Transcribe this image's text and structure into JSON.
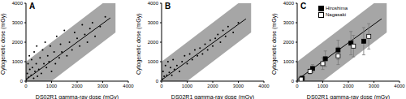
{
  "chart_data": [
    {
      "type": "scatter",
      "title": "A",
      "x_label": "DS02R1 gamma-ray dose (mGy)",
      "y_label": "Cytogenetic dose (mGy)",
      "xlim": [
        0,
        4000
      ],
      "xticks": [
        0,
        1000,
        2000,
        3000,
        4000
      ],
      "ylim": [
        0,
        4000
      ],
      "yticks": [
        0,
        1000,
        2000,
        3000,
        4000
      ],
      "band": {
        "x": [
          0,
          1000,
          3000,
          3500
        ],
        "lower": [
          0,
          0,
          2000,
          2500
        ],
        "upper": [
          1000,
          2000,
          4000,
          4000
        ],
        "color": "#a6a6a6"
      },
      "fit_line": {
        "x": [
          0,
          3300
        ],
        "y": [
          80,
          3250
        ],
        "color": "#000000"
      },
      "series": [
        {
          "color": "#000000",
          "marker": "circle",
          "x": [
            20,
            50,
            80,
            100,
            130,
            150,
            200,
            220,
            250,
            300,
            320,
            350,
            400,
            420,
            450,
            500,
            550,
            600,
            650,
            700,
            750,
            800,
            850,
            900,
            950,
            1000,
            1100,
            1150,
            1200,
            1300,
            1350,
            1400,
            1500,
            1600,
            1700,
            1800,
            1900,
            2000,
            2100,
            2200,
            2300,
            2400,
            2500,
            2600,
            2700,
            2900,
            3100
          ],
          "y": [
            100,
            400,
            900,
            200,
            1300,
            600,
            300,
            1100,
            700,
            150,
            1500,
            500,
            900,
            1800,
            250,
            600,
            1200,
            400,
            1600,
            900,
            2000,
            700,
            1300,
            1000,
            1800,
            500,
            1500,
            900,
            2300,
            1200,
            1900,
            1500,
            2600,
            1300,
            2000,
            1600,
            2500,
            2200,
            1800,
            2900,
            2400,
            2000,
            2700,
            3000,
            2300,
            2800,
            3300
          ]
        }
      ]
    },
    {
      "type": "scatter",
      "title": "B",
      "x_label": "DS02R1 gamma-ray dose (mGy)",
      "y_label": "Cytogenetic dose (mGy)",
      "xlim": [
        0,
        4000
      ],
      "xticks": [
        0,
        1000,
        2000,
        3000,
        4000
      ],
      "ylim": [
        0,
        4000
      ],
      "yticks": [
        0,
        1000,
        2000,
        3000,
        4000
      ],
      "band": {
        "x": [
          0,
          1000,
          3000,
          3500
        ],
        "lower": [
          0,
          0,
          2000,
          2500
        ],
        "upper": [
          1000,
          2000,
          4000,
          4000
        ],
        "color": "#a6a6a6"
      },
      "fit_line": {
        "x": [
          0,
          3300
        ],
        "y": [
          60,
          3200
        ],
        "color": "#000000"
      },
      "series": [
        {
          "color": "#000000",
          "marker": "circle",
          "x": [
            30,
            60,
            100,
            150,
            200,
            250,
            300,
            350,
            400,
            450,
            500,
            600,
            700,
            800,
            900,
            1000,
            1100,
            1200,
            1300,
            1400,
            1500,
            1600,
            1700,
            1800,
            1900,
            2000,
            2100,
            2200,
            2300,
            2400,
            2500,
            2600,
            2800,
            3000
          ],
          "y": [
            100,
            500,
            250,
            800,
            300,
            1000,
            450,
            700,
            300,
            1100,
            600,
            800,
            500,
            1000,
            1300,
            900,
            1400,
            1100,
            1600,
            1300,
            1700,
            1400,
            1900,
            1600,
            2100,
            1800,
            2200,
            2400,
            2000,
            2600,
            2300,
            2800,
            2500,
            3000
          ]
        }
      ]
    },
    {
      "type": "scatter",
      "title": "C",
      "x_label": "DS02R1 gamma-ray dose (mGy)",
      "y_label": "Cytogenetic dose (mGy)",
      "xlim": [
        0,
        4000
      ],
      "xticks": [
        0,
        1000,
        2000,
        3000,
        4000
      ],
      "ylim": [
        0,
        4000
      ],
      "yticks": [
        0,
        1000,
        2000,
        3000,
        4000
      ],
      "legend": "upper left",
      "band": {
        "x": [
          0,
          1000,
          3000,
          3500
        ],
        "lower": [
          0,
          0,
          2000,
          2500
        ],
        "upper": [
          1000,
          2000,
          4000,
          4000
        ],
        "color": "#a6a6a6"
      },
      "fit_line": {
        "x": [
          0,
          3300
        ],
        "y": [
          70,
          3200
        ],
        "color": "#000000"
      },
      "series": [
        {
          "name": "Hiroshima",
          "color": "#000000",
          "marker": "square",
          "x": [
            200,
            600,
            1100,
            1600,
            2100,
            2600
          ],
          "y": [
            150,
            650,
            1150,
            1600,
            1950,
            2050
          ],
          "errors": [
            80,
            200,
            400,
            500,
            600,
            700
          ]
        },
        {
          "name": "Nagasaki",
          "color": "#000000",
          "marker": "open_square",
          "x": [
            150,
            500,
            1000,
            1600,
            2200,
            2800
          ],
          "y": [
            100,
            500,
            900,
            1300,
            1800,
            2300
          ],
          "errors": [
            60,
            150,
            300,
            450,
            550,
            650
          ]
        }
      ]
    }
  ]
}
